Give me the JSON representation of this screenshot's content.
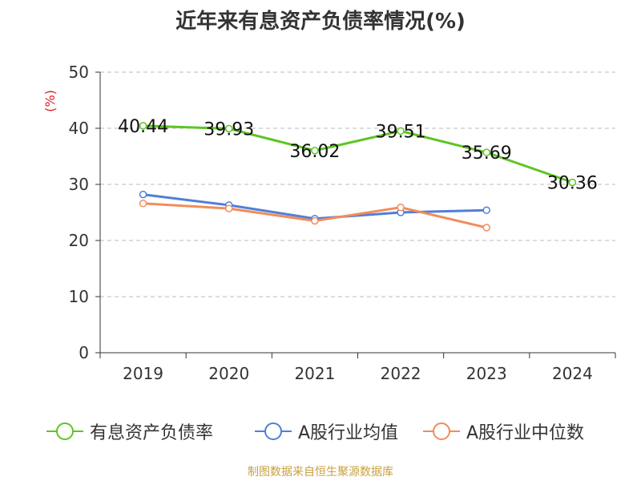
{
  "chart_data": {
    "type": "line",
    "title": "近年来有息资产负债率情况(%)",
    "ylabel": "(%)",
    "xlabel": "",
    "categories": [
      "2019",
      "2020",
      "2021",
      "2022",
      "2023",
      "2024"
    ],
    "ylim": [
      0,
      50
    ],
    "yticks": [
      0,
      10,
      20,
      30,
      40,
      50
    ],
    "grid": true,
    "legend_position": "bottom",
    "series": [
      {
        "name": "有息资产负债率",
        "values": [
          40.44,
          39.93,
          36.02,
          39.51,
          35.69,
          30.36
        ],
        "labels": [
          "40.44",
          "39.93",
          "36.02",
          "39.51",
          "35.69",
          "30.36"
        ],
        "color": "#5ec522"
      },
      {
        "name": "A股行业均值",
        "values": [
          28.2,
          26.3,
          23.9,
          25.0,
          25.4,
          null
        ],
        "color": "#4f7fd9"
      },
      {
        "name": "A股行业中位数",
        "values": [
          26.6,
          25.7,
          23.5,
          25.9,
          22.3,
          null
        ],
        "color": "#f28c5a"
      }
    ]
  },
  "source_note": "制图数据来自恒生聚源数据库",
  "colors": {
    "axis": "#333333",
    "grid": "#bbbbbb",
    "ylabel": "#e02020",
    "source": "#c8a040"
  }
}
